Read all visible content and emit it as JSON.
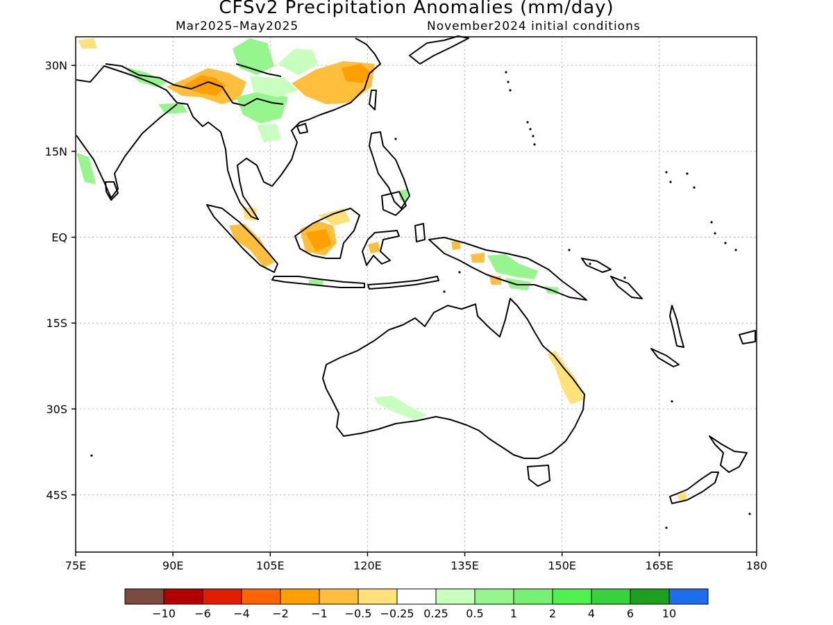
{
  "title": "CFSv2 Precipitation Anomalies (mm/day)",
  "subtitle_left": "Mar2025–May2025",
  "subtitle_right": "November2024 initial conditions",
  "axes": {
    "lat_labels": [
      "30N",
      "15N",
      "EQ",
      "15S",
      "30S",
      "45S"
    ],
    "lon_labels": [
      "75E",
      "90E",
      "105E",
      "120E",
      "135E",
      "150E",
      "165E",
      "180"
    ],
    "lon_range": [
      75,
      180
    ],
    "lat_range": [
      -55,
      35
    ],
    "grid": "dotted"
  },
  "colorbar": {
    "colors": [
      "#7a4a3f",
      "#b40000",
      "#e01e00",
      "#ff6400",
      "#ffa000",
      "#ffbe3c",
      "#ffe17a",
      "#ffffff",
      "#c8ffbe",
      "#96f58c",
      "#78f073",
      "#50f050",
      "#37d23c",
      "#1ea01e",
      "#1e6eeb"
    ],
    "labels": [
      "−10",
      "−6",
      "−4",
      "−2",
      "−1",
      "−0.5",
      "−0.25",
      "0.25",
      "0.5",
      "1",
      "2",
      "4",
      "6",
      "10"
    ]
  }
}
